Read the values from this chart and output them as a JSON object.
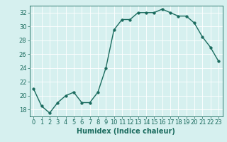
{
  "x": [
    0,
    1,
    2,
    3,
    4,
    5,
    6,
    7,
    8,
    9,
    10,
    11,
    12,
    13,
    14,
    15,
    16,
    17,
    18,
    19,
    20,
    21,
    22,
    23
  ],
  "y": [
    21,
    18.5,
    17.5,
    19,
    20,
    20.5,
    19,
    19,
    20.5,
    24,
    29.5,
    31,
    31,
    32,
    32,
    32,
    32.5,
    32,
    31.5,
    31.5,
    30.5,
    28.5,
    27,
    25
  ],
  "line_color": "#1a6b5e",
  "marker_color": "#1a6b5e",
  "bg_color": "#d6f0ef",
  "grid_color": "#ffffff",
  "xlabel": "Humidex (Indice chaleur)",
  "ylabel": "",
  "xlim": [
    -0.5,
    23.5
  ],
  "ylim": [
    17,
    33
  ],
  "yticks": [
    18,
    20,
    22,
    24,
    26,
    28,
    30,
    32
  ],
  "xticks": [
    0,
    1,
    2,
    3,
    4,
    5,
    6,
    7,
    8,
    9,
    10,
    11,
    12,
    13,
    14,
    15,
    16,
    17,
    18,
    19,
    20,
    21,
    22,
    23
  ],
  "xlabel_fontsize": 7,
  "tick_fontsize": 6,
  "line_width": 1.0,
  "marker_size": 2.5
}
